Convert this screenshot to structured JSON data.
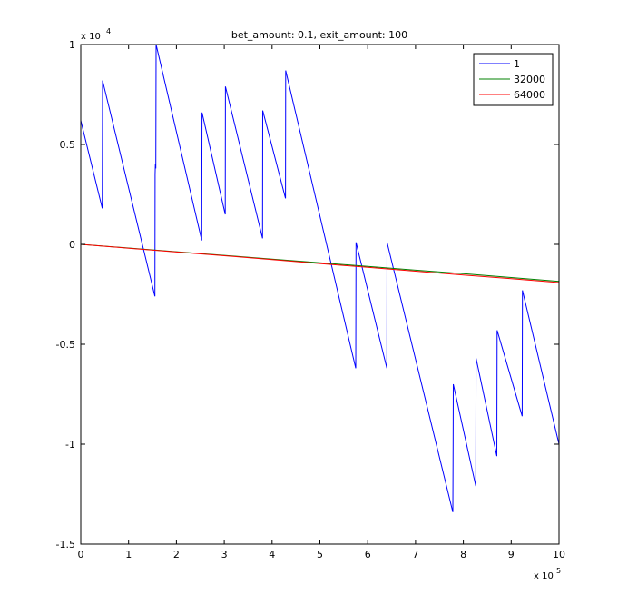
{
  "chart_data": {
    "type": "line",
    "title": "bet_amount: 0.1, exit_amount: 100",
    "xlabel": "",
    "ylabel": "",
    "x_multiplier_label": "x 10",
    "x_multiplier_exp": "5",
    "y_multiplier_label": "x 10",
    "y_multiplier_exp": "4",
    "xlim": [
      0,
      1000000
    ],
    "ylim": [
      -15000,
      10000
    ],
    "x_ticks": [
      0,
      100000,
      200000,
      300000,
      400000,
      500000,
      600000,
      700000,
      800000,
      900000,
      1000000
    ],
    "x_tick_labels": [
      "0",
      "1",
      "2",
      "3",
      "4",
      "5",
      "6",
      "7",
      "8",
      "9",
      "10"
    ],
    "y_ticks": [
      -15000,
      -10000,
      -5000,
      0,
      5000,
      10000
    ],
    "y_tick_labels": [
      "-1.5",
      "-1",
      "-0.5",
      "0",
      "0.5",
      "1"
    ],
    "grid": false,
    "legend_position": "top-right",
    "series": [
      {
        "name": "1",
        "color": "#0000ff",
        "x": [
          0,
          45000,
          45500,
          155000,
          155500,
          156000,
          157000,
          157500,
          253000,
          253500,
          302000,
          302500,
          380000,
          380500,
          428000,
          428500,
          575000,
          575500,
          640000,
          640500,
          778000,
          778500,
          779000,
          826000,
          826500,
          870000,
          870500,
          923000,
          923500,
          1000000
        ],
        "y": [
          6200,
          1800,
          8200,
          -2600,
          3500,
          4000,
          3800,
          10000,
          200,
          6600,
          1500,
          7900,
          300,
          6700,
          2300,
          8700,
          -6200,
          100,
          -6200,
          100,
          -13400,
          -10000,
          -7000,
          -12100,
          -5700,
          -10600,
          -4300,
          -8600,
          -2300,
          -10000
        ]
      },
      {
        "name": "32000",
        "color": "#008000",
        "x": [
          0,
          100000,
          200000,
          300000,
          400000,
          500000,
          600000,
          700000,
          800000,
          900000,
          1000000
        ],
        "y": [
          0,
          -180,
          -370,
          -550,
          -740,
          -920,
          -1100,
          -1290,
          -1470,
          -1660,
          -1850
        ]
      },
      {
        "name": "64000",
        "color": "#ff0000",
        "x": [
          0,
          100000,
          200000,
          300000,
          400000,
          500000,
          600000,
          700000,
          800000,
          900000,
          1000000
        ],
        "y": [
          0,
          -190,
          -380,
          -570,
          -760,
          -960,
          -1150,
          -1340,
          -1530,
          -1720,
          -1910
        ]
      }
    ]
  }
}
